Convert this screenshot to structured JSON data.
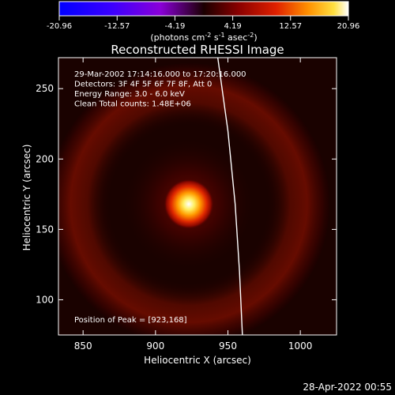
{
  "chart_data": {
    "type": "heatmap",
    "title": "Reconstructed RHESSI Image",
    "xlabel": "Heliocentric X (arcsec)",
    "ylabel": "Heliocentric Y (arcsec)",
    "xlim": [
      833,
      1025
    ],
    "ylim": [
      75,
      272
    ],
    "x_ticks": [
      "850",
      "900",
      "950",
      "1000"
    ],
    "y_ticks": [
      "100",
      "150",
      "200",
      "250"
    ],
    "colorbar": {
      "ticks": [
        "-20.96",
        "-12.57",
        "-4.19",
        "4.19",
        "12.57",
        "20.96"
      ],
      "range": [
        -20.96,
        20.96
      ],
      "unit_label": "(photons cm",
      "unit_exp1": "-2",
      "unit_s": " s",
      "unit_exp2": "-1",
      "unit_asec": " asec",
      "unit_exp3": "-2",
      "unit_close": ")"
    },
    "annotations": [
      "29-Mar-2002 17:14:16.000 to 17:20:16.000",
      "Detectors: 3F 4F 5F 6F 7F 8F, Att 0",
      "Energy Range: 3.0 - 6.0 keV",
      "Clean    Total counts: 1.48E+06"
    ],
    "peak_label": "Position of Peak = [923,168]",
    "peak": [
      923,
      168
    ],
    "ring_radius_arcsec": 72,
    "limb_curve": [
      [
        943,
        272
      ],
      [
        950,
        220
      ],
      [
        955,
        168
      ],
      [
        958,
        120
      ],
      [
        960,
        75
      ]
    ]
  },
  "footer_timestamp": "28-Apr-2022 00:55"
}
